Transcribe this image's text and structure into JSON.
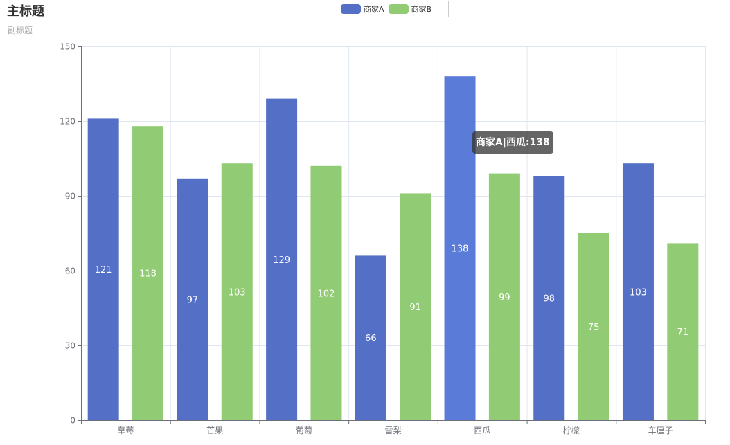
{
  "title": "主标题",
  "subtitle": "副标题",
  "legend": [
    {
      "name": "商家A",
      "color": "#5470c6"
    },
    {
      "name": "商家B",
      "color": "#91cc75"
    }
  ],
  "tooltip": {
    "text": "商家A|西瓜:138"
  },
  "chart_data": {
    "type": "bar",
    "title": "主标题",
    "subtitle": "副标题",
    "categories": [
      "草莓",
      "芒果",
      "葡萄",
      "雪梨",
      "西瓜",
      "柠檬",
      "车厘子"
    ],
    "series": [
      {
        "name": "商家A",
        "color": "#5470c6",
        "values": [
          121,
          97,
          129,
          66,
          138,
          98,
          103
        ]
      },
      {
        "name": "商家B",
        "color": "#91cc75",
        "values": [
          118,
          103,
          102,
          91,
          99,
          75,
          71
        ]
      }
    ],
    "ylim": [
      0,
      150
    ],
    "yticks": [
      0,
      30,
      60,
      90,
      120,
      150
    ],
    "xlabel": "",
    "ylabel": "",
    "grid": true,
    "legend_position": "top-center",
    "highlighted": {
      "series": "商家A",
      "category": "西瓜",
      "color": "#5b7bd8"
    }
  }
}
